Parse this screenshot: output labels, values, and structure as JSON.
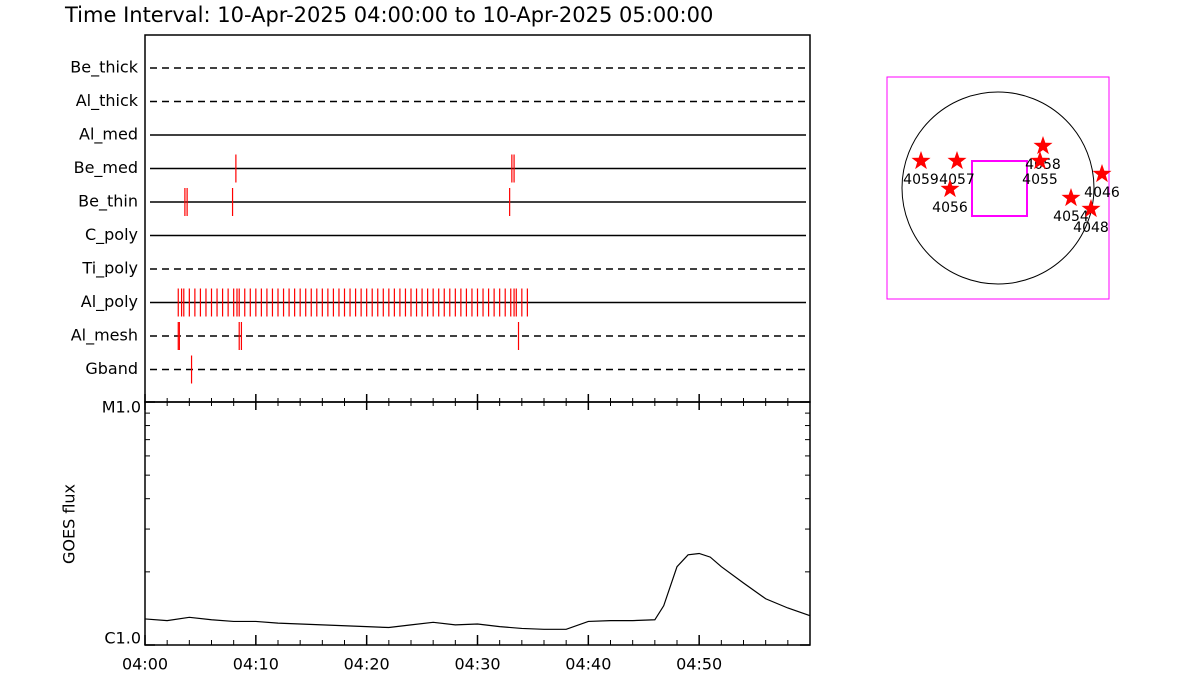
{
  "chart_data": [
    {
      "type": "timeline",
      "title": "Time Interval: 10-Apr-2025 04:00:00 to 10-Apr-2025 05:00:00",
      "xlim": [
        0,
        60
      ],
      "color": "#ff0000",
      "rows": [
        {
          "name": "Be_thick",
          "style": "dashed",
          "times": []
        },
        {
          "name": "Al_thick",
          "style": "dashed",
          "times": []
        },
        {
          "name": "Al_med",
          "style": "solid",
          "times": []
        },
        {
          "name": "Be_med",
          "style": "solid",
          "times": [
            8.2,
            33.1,
            33.3
          ]
        },
        {
          "name": "Be_thin",
          "style": "solid",
          "times": [
            3.6,
            3.8,
            7.9,
            32.9
          ]
        },
        {
          "name": "C_poly",
          "style": "solid",
          "times": []
        },
        {
          "name": "Ti_poly",
          "style": "dashed",
          "times": []
        },
        {
          "name": "Al_poly",
          "style": "solid",
          "times": [
            3.0,
            3.3,
            3.5,
            4.0,
            4.5,
            5.0,
            5.5,
            6.0,
            6.5,
            7.0,
            7.5,
            8.0,
            8.3,
            8.5,
            9.0,
            9.5,
            10.0,
            10.5,
            11.0,
            11.5,
            12.0,
            12.5,
            13.0,
            13.5,
            14.0,
            14.5,
            15.0,
            15.5,
            16.0,
            16.5,
            17.0,
            17.5,
            18.0,
            18.5,
            19.0,
            19.5,
            20.0,
            20.5,
            21.0,
            21.5,
            22.0,
            22.5,
            23.0,
            23.5,
            24.0,
            24.5,
            25.0,
            25.5,
            26.0,
            26.5,
            27.0,
            27.5,
            28.0,
            28.5,
            29.0,
            29.5,
            30.0,
            30.5,
            31.0,
            31.5,
            32.0,
            32.5,
            33.0,
            33.3,
            33.5,
            34.0,
            34.5
          ]
        },
        {
          "name": "Al_mesh",
          "style": "dashed",
          "times": [
            3.0,
            3.1,
            8.5,
            8.7,
            33.7
          ]
        },
        {
          "name": "Gband",
          "style": "dashed",
          "times": [
            4.2
          ]
        }
      ]
    },
    {
      "type": "line",
      "ylabel": "GOES flux",
      "log": true,
      "xlim": [
        0,
        60
      ],
      "xticks": [
        {
          "value": 0,
          "label": "04:00"
        },
        {
          "value": 10,
          "label": "04:10"
        },
        {
          "value": 20,
          "label": "04:20"
        },
        {
          "value": 30,
          "label": "04:30"
        },
        {
          "value": 40,
          "label": "04:40"
        },
        {
          "value": 50,
          "label": "04:50"
        }
      ],
      "xminorticks": [
        2,
        4,
        6,
        8,
        12,
        14,
        16,
        18,
        22,
        24,
        26,
        28,
        32,
        34,
        36,
        38,
        42,
        44,
        46,
        48,
        52,
        54,
        56,
        58
      ],
      "ylim": [
        1e-06,
        1e-05
      ],
      "yticks": [
        {
          "value": 1e-06,
          "label": "C1.0"
        },
        {
          "value": 1e-05,
          "label": "M1.0"
        }
      ],
      "yminorticks": [
        2e-06,
        3e-06,
        4e-06,
        5e-06,
        6e-06,
        7e-06,
        8e-06,
        9e-06
      ],
      "color": "#000000",
      "x": [
        0,
        2,
        4,
        6,
        8,
        10,
        12,
        14,
        16,
        18,
        20,
        22,
        24,
        26,
        28,
        30,
        32,
        34,
        36,
        38,
        40,
        42,
        44,
        46,
        46.8,
        48,
        49,
        50,
        51,
        52,
        54,
        56,
        58,
        60
      ],
      "values": [
        1.28e-06,
        1.26e-06,
        1.3e-06,
        1.27e-06,
        1.25e-06,
        1.25e-06,
        1.23e-06,
        1.22e-06,
        1.21e-06,
        1.2e-06,
        1.19e-06,
        1.18e-06,
        1.21e-06,
        1.24e-06,
        1.21e-06,
        1.22e-06,
        1.19e-06,
        1.17e-06,
        1.16e-06,
        1.16e-06,
        1.25e-06,
        1.26e-06,
        1.26e-06,
        1.27e-06,
        1.45e-06,
        2.1e-06,
        2.35e-06,
        2.38e-06,
        2.3e-06,
        2.1e-06,
        1.8e-06,
        1.55e-06,
        1.42e-06,
        1.32e-06
      ]
    },
    {
      "type": "map",
      "xlim": [
        -1110,
        1110
      ],
      "ylim": [
        -1110,
        1110
      ],
      "radius": 960,
      "frame_color": "#ff00ff",
      "color": "#ff0000",
      "fov": {
        "x": 15,
        "y": -5,
        "width": 550,
        "height": 550
      },
      "points": [
        {
          "label": "4059",
          "x": -770,
          "y": 270
        },
        {
          "label": "4057",
          "x": -410,
          "y": 270
        },
        {
          "label": "4056",
          "x": -480,
          "y": -10
        },
        {
          "label": "4058",
          "x": 450,
          "y": 420
        },
        {
          "label": "4055",
          "x": 420,
          "y": 270
        },
        {
          "label": "4054",
          "x": 730,
          "y": -100
        },
        {
          "label": "4048",
          "x": 930,
          "y": -210
        },
        {
          "label": "4046",
          "x": 1040,
          "y": 140
        }
      ]
    }
  ]
}
